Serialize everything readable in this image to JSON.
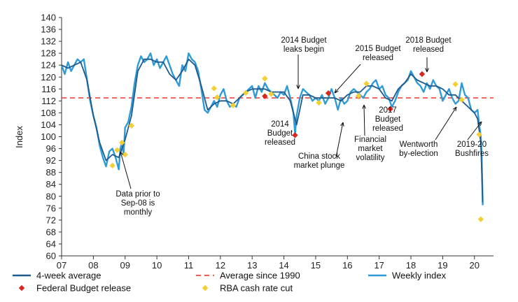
{
  "chart_data": {
    "type": "line",
    "ylabel": "Index",
    "xlabel": "",
    "ylim": [
      60,
      140
    ],
    "y_ticks": [
      "60",
      "64",
      "68",
      "72",
      "76",
      "80",
      "84",
      "88",
      "92",
      "96",
      "100",
      "104",
      "108",
      "112",
      "116",
      "120",
      "124",
      "128",
      "132",
      "136",
      "140"
    ],
    "x_ticks": [
      "07",
      "08",
      "09",
      "10",
      "11",
      "12",
      "13",
      "14",
      "15",
      "16",
      "17",
      "18",
      "19",
      "20"
    ],
    "average_since_1990": 113,
    "series": [
      {
        "name": "Weekly index",
        "color": "#2e9bd6",
        "x": [
          2007.0,
          2007.1,
          2007.2,
          2007.3,
          2007.4,
          2007.5,
          2007.6,
          2007.7,
          2007.8,
          2007.9,
          2008.0,
          2008.1,
          2008.2,
          2008.3,
          2008.4,
          2008.5,
          2008.6,
          2008.7,
          2008.75,
          2008.8,
          2008.85,
          2008.9,
          2008.95,
          2009.0,
          2009.1,
          2009.2,
          2009.3,
          2009.4,
          2009.5,
          2009.6,
          2009.7,
          2009.8,
          2009.9,
          2010.0,
          2010.1,
          2010.2,
          2010.3,
          2010.4,
          2010.5,
          2010.6,
          2010.7,
          2010.8,
          2010.9,
          2011.0,
          2011.1,
          2011.2,
          2011.3,
          2011.4,
          2011.5,
          2011.6,
          2011.7,
          2011.8,
          2011.9,
          2012.0,
          2012.1,
          2012.2,
          2012.3,
          2012.4,
          2012.5,
          2012.6,
          2012.7,
          2012.8,
          2012.9,
          2013.0,
          2013.1,
          2013.2,
          2013.3,
          2013.4,
          2013.5,
          2013.6,
          2013.7,
          2013.8,
          2013.9,
          2014.0,
          2014.1,
          2014.2,
          2014.3,
          2014.35,
          2014.4,
          2014.5,
          2014.6,
          2014.7,
          2014.8,
          2014.9,
          2015.0,
          2015.1,
          2015.2,
          2015.3,
          2015.4,
          2015.5,
          2015.6,
          2015.7,
          2015.8,
          2015.9,
          2016.0,
          2016.1,
          2016.2,
          2016.3,
          2016.4,
          2016.5,
          2016.6,
          2016.7,
          2016.8,
          2016.9,
          2017.0,
          2017.1,
          2017.2,
          2017.3,
          2017.4,
          2017.5,
          2017.6,
          2017.7,
          2017.8,
          2017.9,
          2018.0,
          2018.1,
          2018.2,
          2018.3,
          2018.4,
          2018.5,
          2018.6,
          2018.7,
          2018.8,
          2018.9,
          2019.0,
          2019.1,
          2019.2,
          2019.3,
          2019.4,
          2019.5,
          2019.6,
          2019.7,
          2019.8,
          2019.9,
          2020.0,
          2020.1,
          2020.15,
          2020.2,
          2020.23,
          2020.26
        ],
        "values": [
          124,
          121,
          125,
          122,
          124,
          126,
          125,
          126,
          119,
          112,
          107,
          103,
          97,
          93,
          90,
          95,
          96,
          93,
          91,
          89,
          96,
          98,
          94,
          103,
          105,
          110,
          118,
          124,
          127,
          125,
          126,
          128,
          124,
          126,
          123,
          125,
          127,
          124,
          121,
          119,
          117,
          124,
          122,
          128,
          126,
          125,
          122,
          116,
          109,
          108,
          110,
          112,
          110,
          114,
          116,
          112,
          110,
          111,
          110,
          113,
          114,
          115,
          116,
          117,
          113,
          117,
          115,
          118,
          116,
          115,
          114,
          113,
          115,
          114,
          117,
          113,
          108,
          101,
          107,
          113,
          116,
          115,
          114,
          112,
          113,
          112,
          114,
          111,
          113,
          116,
          113,
          109,
          113,
          111,
          112,
          115,
          116,
          115,
          114,
          113,
          115,
          116,
          118,
          119,
          116,
          117,
          114,
          113,
          110,
          112,
          115,
          117,
          118,
          119,
          122,
          120,
          118,
          117,
          115,
          118,
          116,
          119,
          117,
          116,
          112,
          114,
          116,
          113,
          111,
          112,
          118,
          114,
          113,
          109,
          108,
          109,
          104,
          100,
          93,
          77
        ]
      },
      {
        "name": "4-week average",
        "color": "#1f5a8c",
        "x": [
          2007.0,
          2007.2,
          2007.4,
          2007.6,
          2007.8,
          2008.0,
          2008.2,
          2008.4,
          2008.6,
          2008.8,
          2009.0,
          2009.2,
          2009.4,
          2009.6,
          2009.8,
          2010.0,
          2010.2,
          2010.4,
          2010.6,
          2010.8,
          2011.0,
          2011.2,
          2011.4,
          2011.6,
          2011.8,
          2012.0,
          2012.2,
          2012.4,
          2012.6,
          2012.8,
          2013.0,
          2013.2,
          2013.4,
          2013.6,
          2013.8,
          2014.0,
          2014.2,
          2014.4,
          2014.6,
          2014.8,
          2015.0,
          2015.2,
          2015.4,
          2015.6,
          2015.8,
          2016.0,
          2016.2,
          2016.4,
          2016.6,
          2016.8,
          2017.0,
          2017.2,
          2017.4,
          2017.6,
          2017.8,
          2018.0,
          2018.2,
          2018.4,
          2018.6,
          2018.8,
          2019.0,
          2019.2,
          2019.4,
          2019.6,
          2019.8,
          2020.0,
          2020.1,
          2020.2,
          2020.26
        ],
        "values": [
          124,
          123,
          124,
          125,
          119,
          107,
          98,
          92,
          94,
          93,
          99,
          107,
          122,
          126,
          126,
          125,
          125,
          121,
          119,
          122,
          126,
          124,
          117,
          109,
          111,
          112,
          112,
          111,
          113,
          115,
          116,
          116,
          116,
          115,
          115,
          115,
          112,
          104,
          114,
          114,
          113,
          113,
          113,
          113,
          112,
          114,
          115,
          115,
          117,
          117,
          116,
          113,
          112,
          116,
          118,
          121,
          119,
          118,
          117,
          117,
          116,
          114,
          114,
          112,
          110,
          108,
          106,
          98,
          78
        ]
      }
    ],
    "markers": [
      {
        "name": "Federal Budget release",
        "color": "#d7261e",
        "shape": "diamond",
        "points": [
          {
            "x": 2013.4,
            "y": 113.6
          },
          {
            "x": 2014.35,
            "y": 100.5
          },
          {
            "x": 2015.4,
            "y": 114.6
          },
          {
            "x": 2016.35,
            "y": 113.6
          },
          {
            "x": 2017.35,
            "y": 109.3
          },
          {
            "x": 2018.35,
            "y": 121.0
          }
        ]
      },
      {
        "name": "RBA cash rate cut",
        "color": "#f2cf32",
        "shape": "diamond",
        "points": [
          {
            "x": 2008.6,
            "y": 90.3
          },
          {
            "x": 2008.75,
            "y": 95.5
          },
          {
            "x": 2008.9,
            "y": 98
          },
          {
            "x": 2009.0,
            "y": 94
          },
          {
            "x": 2009.2,
            "y": 103.7
          },
          {
            "x": 2011.8,
            "y": 116.2
          },
          {
            "x": 2011.9,
            "y": 113.2
          },
          {
            "x": 2012.4,
            "y": 110.5
          },
          {
            "x": 2012.8,
            "y": 114.7
          },
          {
            "x": 2013.4,
            "y": 119.5
          },
          {
            "x": 2013.6,
            "y": 114.3
          },
          {
            "x": 2015.1,
            "y": 111.4
          },
          {
            "x": 2016.35,
            "y": 113.7
          },
          {
            "x": 2016.6,
            "y": 117.8
          },
          {
            "x": 2019.4,
            "y": 117.6
          },
          {
            "x": 2019.6,
            "y": 112.4
          },
          {
            "x": 2020.15,
            "y": 100.7
          },
          {
            "x": 2020.2,
            "y": 72.3
          }
        ]
      }
    ],
    "annotations": [
      {
        "lines": [
          "2014 Budget",
          "leaks begin"
        ]
      },
      {
        "lines": [
          "2015 Budget",
          "released"
        ]
      },
      {
        "lines": [
          "2018 Budget",
          "released"
        ]
      },
      {
        "lines": [
          "2014",
          "Budget",
          "released"
        ]
      },
      {
        "lines": [
          "China stock",
          "market plunge"
        ]
      },
      {
        "lines": [
          "Financial",
          "market",
          "volatility"
        ]
      },
      {
        "lines": [
          "2017",
          "Budget",
          "released"
        ]
      },
      {
        "lines": [
          "Wentworth",
          "by-election"
        ]
      },
      {
        "lines": [
          "2019-20",
          "Bushfires"
        ]
      },
      {
        "lines": [
          "Data prior to",
          "Sep-08 is",
          "monthly"
        ]
      }
    ],
    "legend": [
      {
        "label": "4-week average",
        "color": "#1f5a8c",
        "kind": "line"
      },
      {
        "label": "Average since 1990",
        "color": "#e8493c",
        "kind": "dash"
      },
      {
        "label": "Weekly index",
        "color": "#2e9bd6",
        "kind": "line"
      },
      {
        "label": "Federal Budget release",
        "color": "#d7261e",
        "kind": "diamond"
      },
      {
        "label": "RBA cash rate cut",
        "color": "#f2cf32",
        "kind": "diamond"
      }
    ]
  }
}
